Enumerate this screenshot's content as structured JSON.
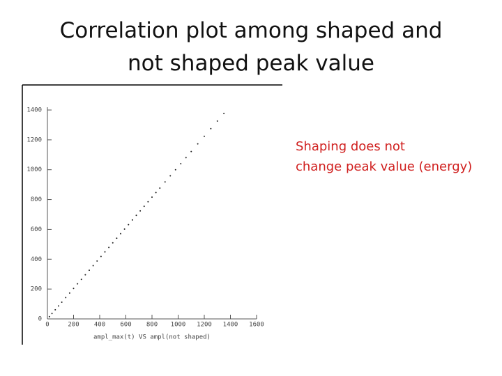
{
  "chart_data": {
    "type": "scatter",
    "title_lines": [
      "Correlation plot among shaped and",
      "not shaped peak value"
    ],
    "annotation_lines": [
      "Shaping does not",
      "change peak value (energy)"
    ],
    "x_label": "ampl_max(t) VS ampl(not shaped)",
    "color": "#222222",
    "x": [
      15,
      35,
      60,
      85,
      110,
      140,
      170,
      200,
      230,
      260,
      290,
      320,
      350,
      380,
      410,
      440,
      470,
      500,
      530,
      560,
      590,
      620,
      650,
      680,
      710,
      740,
      770,
      800,
      830,
      860,
      900,
      940,
      980,
      1020,
      1060,
      1100,
      1150,
      1200,
      1250,
      1300,
      1350
    ],
    "values": [
      15,
      36,
      61,
      87,
      112,
      143,
      173,
      204,
      235,
      265,
      296,
      326,
      357,
      388,
      418,
      449,
      479,
      510,
      541,
      571,
      602,
      632,
      663,
      694,
      724,
      755,
      785,
      816,
      847,
      877,
      918,
      959,
      1000,
      1040,
      1081,
      1122,
      1173,
      1224,
      1275,
      1326,
      1377
    ],
    "xlim": [
      0,
      1600
    ],
    "ylim": [
      0,
      1400
    ],
    "xticks": [
      0,
      200,
      400,
      600,
      800,
      1000,
      1200,
      1400,
      1600
    ],
    "yticks": [
      0,
      200,
      400,
      600,
      800,
      1000,
      1200,
      1400
    ]
  }
}
